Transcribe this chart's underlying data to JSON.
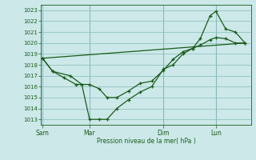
{
  "xlabel": "Pression niveau de la mer( hPa )",
  "ylim": [
    1012.5,
    1023.5
  ],
  "yticks": [
    1013,
    1014,
    1015,
    1016,
    1017,
    1018,
    1019,
    1020,
    1021,
    1022,
    1023
  ],
  "background_color": "#cce8e8",
  "line_color": "#1a5c1a",
  "grid_color": "#88bbbb",
  "tick_label_color": "#1a5c1a",
  "day_labels": [
    "Sam",
    "Mar",
    "Dim",
    "Lun"
  ],
  "day_positions": [
    0.08,
    2.5,
    6.3,
    9.0
  ],
  "day_vline_positions": [
    0.08,
    2.5,
    6.3,
    9.0
  ],
  "xlim": [
    0,
    10.8
  ],
  "line1_x": [
    0.08,
    0.6,
    1.5,
    2.1,
    2.5,
    3.0,
    3.4,
    3.9,
    4.5,
    5.1,
    5.7,
    6.3,
    6.8,
    7.3,
    7.8,
    8.2,
    8.7,
    9.0,
    9.5,
    10.0,
    10.5
  ],
  "line1_y": [
    1018.6,
    1017.4,
    1017.0,
    1016.2,
    1013.0,
    1013.0,
    1013.0,
    1014.0,
    1014.8,
    1015.5,
    1016.0,
    1017.6,
    1018.0,
    1019.0,
    1019.5,
    1020.4,
    1022.5,
    1022.9,
    1021.3,
    1021.0,
    1020.0
  ],
  "line2_x": [
    0.08,
    0.6,
    1.2,
    1.8,
    2.5,
    3.0,
    3.4,
    3.9,
    4.5,
    5.1,
    5.7,
    6.3,
    6.8,
    7.3,
    7.8,
    8.2,
    8.7,
    9.0,
    9.5,
    10.0,
    10.5
  ],
  "line2_y": [
    1018.6,
    1017.4,
    1016.8,
    1016.2,
    1016.2,
    1015.8,
    1015.0,
    1015.0,
    1015.6,
    1016.3,
    1016.5,
    1017.5,
    1018.5,
    1019.2,
    1019.5,
    1019.8,
    1020.3,
    1020.5,
    1020.4,
    1020.0,
    1020.0
  ],
  "line3_x": [
    0.08,
    10.5
  ],
  "line3_y": [
    1018.6,
    1020.0
  ],
  "marker_size": 3.5
}
